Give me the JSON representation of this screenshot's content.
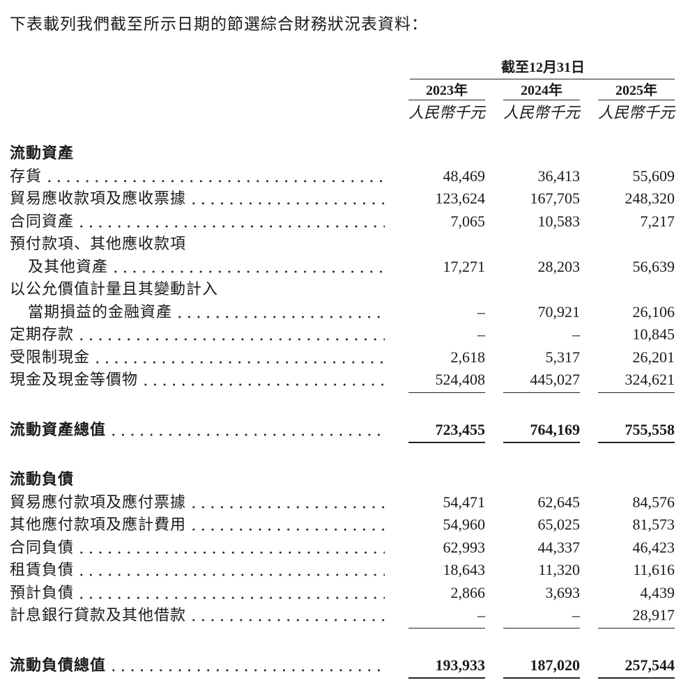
{
  "intro": "下表載列我們截至所示日期的節選綜合財務狀況表資料：",
  "header": {
    "period": "截至12月31日",
    "years": [
      "2023年",
      "2024年",
      "2025年"
    ],
    "units": [
      "人民幣千元",
      "人民幣千元",
      "人民幣千元"
    ]
  },
  "sections": [
    {
      "title": "流動資產",
      "rows": [
        {
          "label": [
            "存貨"
          ],
          "values": [
            "48,469",
            "36,413",
            "55,609"
          ]
        },
        {
          "label": [
            "貿易應收款項及應收票據"
          ],
          "values": [
            "123,624",
            "167,705",
            "248,320"
          ]
        },
        {
          "label": [
            "合同資產"
          ],
          "values": [
            "7,065",
            "10,583",
            "7,217"
          ]
        },
        {
          "label": [
            "預付款項、其他應收款項",
            "及其他資產"
          ],
          "values": [
            "17,271",
            "28,203",
            "56,639"
          ]
        },
        {
          "label": [
            "以公允價值計量且其變動計入",
            "當期損益的金融資產"
          ],
          "values": [
            "–",
            "70,921",
            "26,106"
          ]
        },
        {
          "label": [
            "定期存款"
          ],
          "values": [
            "–",
            "–",
            "10,845"
          ]
        },
        {
          "label": [
            "受限制現金"
          ],
          "values": [
            "2,618",
            "5,317",
            "26,201"
          ]
        },
        {
          "label": [
            "現金及現金等價物"
          ],
          "values": [
            "524,408",
            "445,027",
            "324,621"
          ]
        }
      ],
      "total": {
        "label": "流動資產總值",
        "values": [
          "723,455",
          "764,169",
          "755,558"
        ]
      }
    },
    {
      "title": "流動負債",
      "rows": [
        {
          "label": [
            "貿易應付款項及應付票據"
          ],
          "values": [
            "54,471",
            "62,645",
            "84,576"
          ]
        },
        {
          "label": [
            "其他應付款項及應計費用"
          ],
          "values": [
            "54,960",
            "65,025",
            "81,573"
          ]
        },
        {
          "label": [
            "合同負債"
          ],
          "values": [
            "62,993",
            "44,337",
            "46,423"
          ]
        },
        {
          "label": [
            "租賃負債"
          ],
          "values": [
            "18,643",
            "11,320",
            "11,616"
          ]
        },
        {
          "label": [
            "預計負債"
          ],
          "values": [
            "2,866",
            "3,693",
            "4,439"
          ]
        },
        {
          "label": [
            "計息銀行貸款及其他借款"
          ],
          "values": [
            "–",
            "–",
            "28,917"
          ]
        }
      ],
      "total": {
        "label": "流動負債總值",
        "values": [
          "193,933",
          "187,020",
          "257,544"
        ]
      }
    }
  ]
}
